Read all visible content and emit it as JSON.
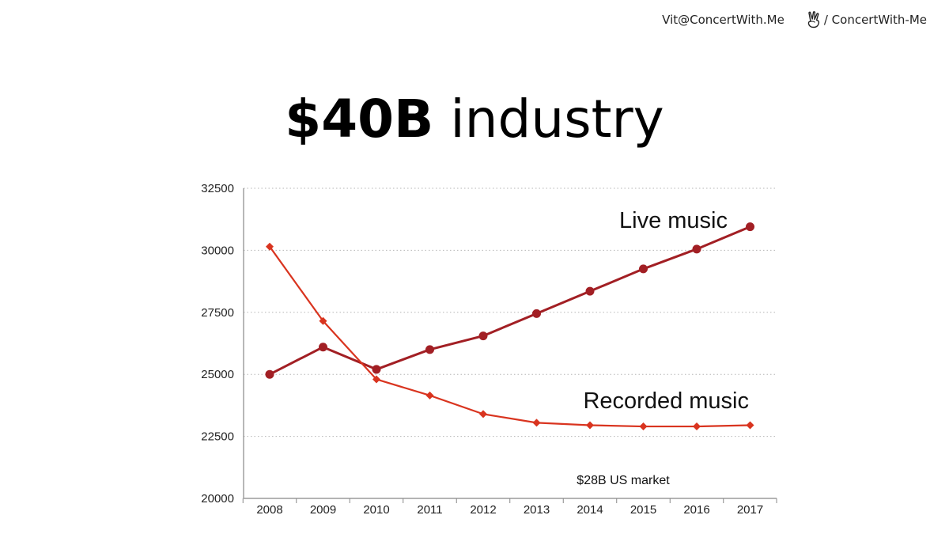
{
  "header": {
    "email": "Vit@ConcertWith.Me",
    "social_handle": "/ ConcertWith-Me",
    "social_icon": "angellist-icon"
  },
  "slide": {
    "title_bold": "$40B",
    "title_rest": "industry"
  },
  "chart_data": {
    "type": "line",
    "title": "",
    "xlabel": "",
    "ylabel": "",
    "x": [
      "2008",
      "2009",
      "2010",
      "2011",
      "2012",
      "2013",
      "2014",
      "2015",
      "2016",
      "2017"
    ],
    "ylim": [
      20000,
      32500
    ],
    "yticks": [
      20000,
      22500,
      25000,
      27500,
      30000,
      32500
    ],
    "grid": "horizontal dotted",
    "series": [
      {
        "name": "Live music",
        "color": "#a21f24",
        "marker": "circle",
        "values": [
          25000,
          26100,
          25200,
          26000,
          26550,
          27450,
          28350,
          29250,
          30050,
          30950
        ]
      },
      {
        "name": "Recorded music",
        "color": "#d9341f",
        "marker": "diamond",
        "values": [
          30150,
          27150,
          24800,
          24150,
          23400,
          23050,
          22950,
          22900,
          22900,
          22950
        ]
      }
    ],
    "annotations": [
      {
        "text": "$28B US market"
      }
    ]
  }
}
